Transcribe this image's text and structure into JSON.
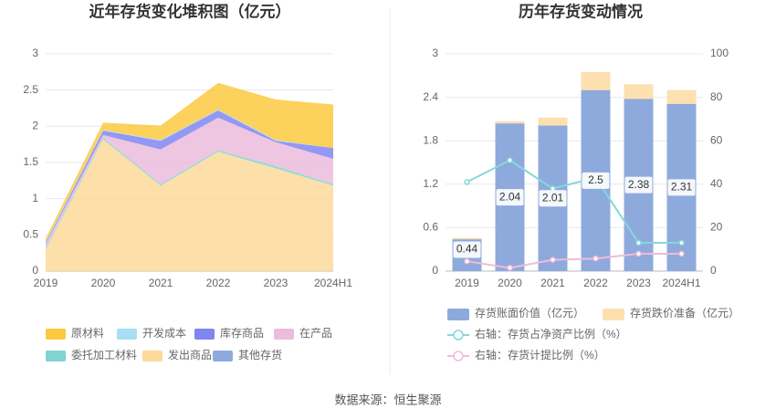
{
  "chart_data": [
    {
      "type": "stacked_area",
      "title": "近年存货变化堆积图（亿元）",
      "categories": [
        "2019",
        "2020",
        "2021",
        "2022",
        "2023",
        "2024H1"
      ],
      "ylim": [
        0,
        3
      ],
      "yticks": [
        0,
        0.5,
        1,
        1.5,
        2,
        2.5,
        3
      ],
      "grid": true,
      "series": [
        {
          "name": "原材料",
          "color": "#fcc93f",
          "values": [
            0.05,
            0.1,
            0.2,
            0.37,
            0.56,
            0.6
          ]
        },
        {
          "name": "开发成本",
          "color": "#a6def6",
          "values": [
            0.01,
            0.01,
            0.01,
            0.01,
            0.01,
            0
          ]
        },
        {
          "name": "库存商品",
          "color": "#7f86f2",
          "values": [
            0.02,
            0.06,
            0.12,
            0.1,
            0.02,
            0.15
          ]
        },
        {
          "name": "在产品",
          "color": "#ebbcdc",
          "values": [
            0.05,
            0.04,
            0.48,
            0.45,
            0.33,
            0.35
          ]
        },
        {
          "name": "委托加工材料",
          "color": "#7fd4d2",
          "values": [
            0.02,
            0.02,
            0.02,
            0.02,
            0.03,
            0.02
          ]
        },
        {
          "name": "发出商品",
          "color": "#fdd99a",
          "values": [
            0.3,
            1.82,
            1.18,
            1.65,
            1.42,
            1.18
          ]
        },
        {
          "name": "其他存货",
          "color": "#8eaadc",
          "values": [
            0,
            0,
            0,
            0,
            0,
            0
          ]
        }
      ]
    },
    {
      "type": "bar_line",
      "title": "历年存货变动情况",
      "categories": [
        "2019",
        "2020",
        "2021",
        "2022",
        "2023",
        "2024H1"
      ],
      "ylim": [
        0,
        3
      ],
      "yticks": [
        0,
        0.6,
        1.2,
        1.8,
        2.4,
        3
      ],
      "y2lim": [
        0,
        100
      ],
      "y2ticks": [
        0,
        20,
        40,
        60,
        80,
        100
      ],
      "grid": true,
      "series": [
        {
          "name": "存货账面价值（亿元）",
          "color": "#8eaadc",
          "kind": "bar",
          "values": [
            0.44,
            2.04,
            2.01,
            2.5,
            2.38,
            2.31
          ]
        },
        {
          "name": "存货跌价准备（亿元）",
          "color": "#fde0b0",
          "kind": "bar",
          "values": [
            0.02,
            0.03,
            0.11,
            0.25,
            0.2,
            0.19
          ]
        },
        {
          "name": "右轴：存货占净资产比例（%）",
          "color": "#84d8d8",
          "kind": "line",
          "axis": "y2",
          "values": [
            41,
            51,
            38,
            43,
            13,
            13
          ]
        },
        {
          "name": "右轴：存货计提比例（%）",
          "color": "#f0bcd8",
          "kind": "line",
          "axis": "y2",
          "values": [
            4.5,
            1.5,
            5.2,
            5.8,
            8,
            8
          ]
        }
      ]
    }
  ],
  "source": "数据来源：恒生聚源"
}
